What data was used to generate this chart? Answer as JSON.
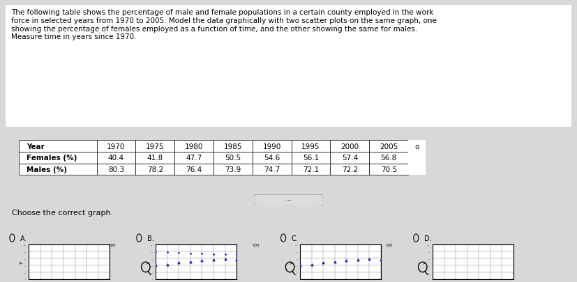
{
  "years": [
    1970,
    1975,
    1980,
    1985,
    1990,
    1995,
    2000,
    2005
  ],
  "years_since_1970": [
    0,
    5,
    10,
    15,
    20,
    25,
    30,
    35
  ],
  "females": [
    40.4,
    41.8,
    47.7,
    50.5,
    54.6,
    56.1,
    57.4,
    56.8
  ],
  "males": [
    80.3,
    78.2,
    76.4,
    73.9,
    74.7,
    72.1,
    72.2,
    70.5
  ],
  "title_text": "The following table shows the percentage of male and female populations in a certain county employed in the work\nforce in selected years from 1970 to 2005. Model the data graphically with two scatter plots on the same graph, one\nshowing the percentage of females employed as a function of time, and the other showing the same for males.\nMeasure time in years since 1970.",
  "choose_text": "Choose the correct graph.",
  "bg_color": "#e8e8e8",
  "female_color": "#4444aa",
  "male_color": "#4444aa",
  "female_marker": "^",
  "male_marker": ".",
  "xlim": [
    0,
    35
  ],
  "ylim": [
    0,
    100
  ],
  "xlabel": "on",
  "ylabel": "y"
}
